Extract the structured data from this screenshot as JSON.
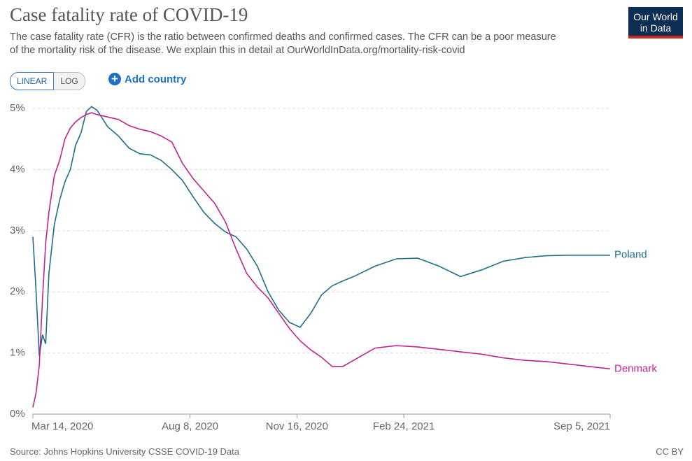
{
  "chart_data": {
    "type": "line",
    "title": "Case fatality rate of COVID-19",
    "subtitle": "The case fatality rate (CFR) is the ratio between confirmed deaths and confirmed cases. The CFR can be a poor measure of the mortality risk of the disease. We explain this in detail at OurWorldInData.org/mortality-risk-covid",
    "logo": [
      "Our World",
      "in Data"
    ],
    "scale_buttons": [
      "LINEAR",
      "LOG"
    ],
    "add_button": "Add country",
    "source": "Source: Johns Hopkins University CSSE COVID-19 Data",
    "license": "CC BY",
    "log_scale": false,
    "grid": true,
    "x": [
      "2020-03-14",
      "2020-03-17",
      "2020-03-20",
      "2020-03-23",
      "2020-03-26",
      "2020-03-29",
      "2020-04-03",
      "2020-04-08",
      "2020-04-13",
      "2020-04-18",
      "2020-04-23",
      "2020-04-28",
      "2020-05-03",
      "2020-05-08",
      "2020-05-13",
      "2020-05-23",
      "2020-06-02",
      "2020-06-12",
      "2020-06-22",
      "2020-07-02",
      "2020-07-12",
      "2020-07-22",
      "2020-08-01",
      "2020-08-11",
      "2020-08-21",
      "2020-08-31",
      "2020-09-10",
      "2020-09-20",
      "2020-09-30",
      "2020-10-10",
      "2020-10-20",
      "2020-10-30",
      "2020-11-09",
      "2020-11-19",
      "2020-11-29",
      "2020-12-09",
      "2020-12-19",
      "2020-12-29",
      "2021-01-08",
      "2021-01-28",
      "2021-02-17",
      "2021-03-09",
      "2021-03-29",
      "2021-04-18",
      "2021-05-08",
      "2021-05-28",
      "2021-06-17",
      "2021-07-07",
      "2021-07-27",
      "2021-08-16",
      "2021-09-05"
    ],
    "series": [
      {
        "name": "Poland",
        "color": "#1f6e8c",
        "values": [
          2.9,
          2.0,
          0.95,
          1.3,
          1.15,
          2.3,
          3.1,
          3.5,
          3.8,
          4.0,
          4.4,
          4.6,
          4.95,
          5.03,
          4.97,
          4.7,
          4.55,
          4.35,
          4.26,
          4.24,
          4.15,
          4.0,
          3.82,
          3.55,
          3.3,
          3.12,
          2.98,
          2.9,
          2.7,
          2.42,
          2.0,
          1.7,
          1.5,
          1.42,
          1.65,
          1.95,
          2.1,
          2.18,
          2.25,
          2.42,
          2.54,
          2.55,
          2.42,
          2.25,
          2.36,
          2.5,
          2.56,
          2.59,
          2.6,
          2.6,
          2.6
        ]
      },
      {
        "name": "Denmark",
        "color": "#c0238f",
        "values": [
          0.11,
          0.35,
          0.8,
          1.9,
          2.8,
          3.3,
          3.9,
          4.15,
          4.5,
          4.68,
          4.78,
          4.85,
          4.9,
          4.93,
          4.9,
          4.86,
          4.82,
          4.72,
          4.66,
          4.62,
          4.55,
          4.45,
          4.1,
          3.85,
          3.65,
          3.45,
          3.15,
          2.7,
          2.3,
          2.08,
          1.9,
          1.65,
          1.4,
          1.2,
          1.05,
          0.93,
          0.78,
          0.78,
          0.88,
          1.08,
          1.12,
          1.1,
          1.06,
          1.02,
          0.98,
          0.92,
          0.88,
          0.86,
          0.82,
          0.78,
          0.74
        ]
      }
    ],
    "xlim": [
      "2020-03-14",
      "2021-09-05"
    ],
    "xticks": [
      {
        "value": "2020-03-14",
        "label": "Mar 14, 2020"
      },
      {
        "value": "2020-08-08",
        "label": "Aug 8, 2020"
      },
      {
        "value": "2020-11-16",
        "label": "Nov 16, 2020"
      },
      {
        "value": "2021-02-24",
        "label": "Feb 24, 2021"
      },
      {
        "value": "2021-09-05",
        "label": "Sep 5, 2021"
      }
    ],
    "ylim": [
      0,
      5
    ],
    "yticks": [
      {
        "value": 0,
        "label": "0%"
      },
      {
        "value": 1,
        "label": "1%"
      },
      {
        "value": 2,
        "label": "2%"
      },
      {
        "value": 3,
        "label": "3%"
      },
      {
        "value": 4,
        "label": "4%"
      },
      {
        "value": 5,
        "label": "5%"
      }
    ]
  }
}
